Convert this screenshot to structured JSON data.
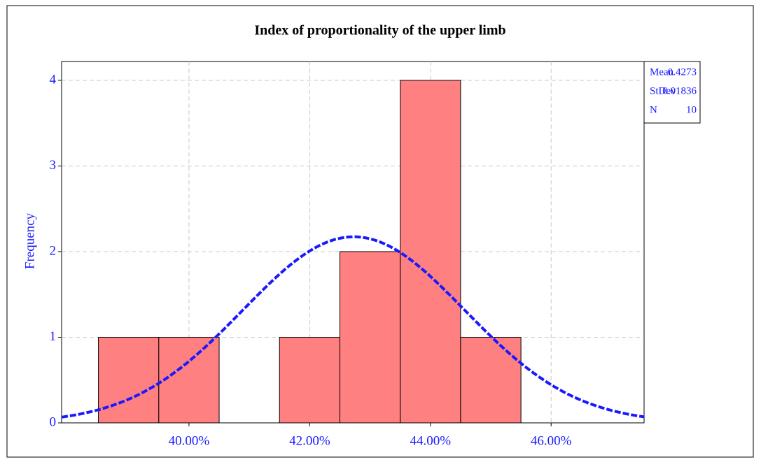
{
  "chart_data": {
    "type": "histogram",
    "title": "Index of proportionality of the upper limb",
    "y_label": "Frequency",
    "bins": [
      0.385,
      0.395,
      0.405,
      0.415,
      0.425,
      0.435,
      0.445,
      0.455
    ],
    "values": [
      1,
      1,
      0,
      1,
      2,
      4,
      1
    ],
    "color": "#ff8080",
    "curve_color": "#1a1aff",
    "xlim": [
      0.3789,
      0.4754
    ],
    "xticks": [
      {
        "value": 0.4,
        "label": "40.00%"
      },
      {
        "value": 0.42,
        "label": "42.00%"
      },
      {
        "value": 0.44,
        "label": "44.00%"
      },
      {
        "value": 0.46,
        "label": "46.00%"
      }
    ],
    "ylim": [
      0,
      4.22
    ],
    "yticks": [
      0,
      1,
      2,
      3,
      4
    ],
    "grid": true,
    "stats": [
      {
        "name": "Mean",
        "value": 0.4273
      },
      {
        "name": "StDev",
        "value": 0.01836
      },
      {
        "name": "N",
        "value": 10
      }
    ]
  }
}
